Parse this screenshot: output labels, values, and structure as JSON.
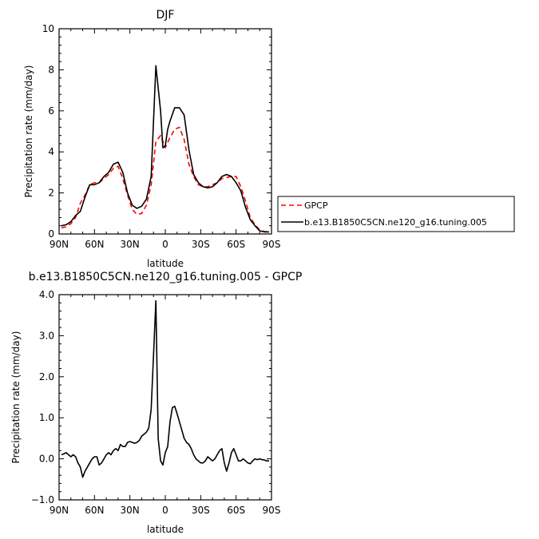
{
  "chart_data": [
    {
      "type": "line",
      "title": "DJF",
      "xlabel": "latitude",
      "ylabel": "Precipitation rate (mm/day)",
      "xlim": [
        90,
        -90
      ],
      "ylim": [
        0,
        10
      ],
      "xticks": [
        90,
        60,
        30,
        0,
        -30,
        -60,
        -90
      ],
      "xticklabels": [
        "90N",
        "60N",
        "30N",
        "0",
        "30S",
        "60S",
        "90S"
      ],
      "yticks": [
        0,
        2,
        4,
        6,
        8,
        10
      ],
      "yticklabels": [
        "0",
        "2",
        "4",
        "6",
        "8",
        "10"
      ],
      "legend_position": "right",
      "series": [
        {
          "name": "GPCP",
          "color": "#ff0000",
          "dash": "dashed",
          "x": [
            88,
            84,
            80,
            76,
            72,
            68,
            64,
            60,
            56,
            52,
            48,
            44,
            40,
            36,
            32,
            28,
            24,
            20,
            16,
            12,
            8,
            4,
            0,
            -4,
            -8,
            -12,
            -16,
            -20,
            -24,
            -28,
            -32,
            -36,
            -40,
            -44,
            -48,
            -52,
            -56,
            -60,
            -64,
            -68,
            -72,
            -76,
            -80,
            -84,
            -88
          ],
          "y": [
            0.3,
            0.35,
            0.5,
            0.8,
            1.5,
            1.9,
            2.4,
            2.5,
            2.5,
            2.7,
            2.9,
            3.2,
            3.3,
            2.7,
            1.9,
            1.2,
            0.95,
            1.0,
            1.4,
            2.4,
            4.5,
            4.8,
            4.2,
            4.7,
            5.1,
            5.2,
            4.6,
            3.4,
            2.8,
            2.4,
            2.3,
            2.3,
            2.4,
            2.5,
            2.7,
            2.75,
            2.8,
            2.8,
            2.3,
            1.6,
            0.8,
            0.45,
            0.2,
            0.12,
            0.1
          ]
        },
        {
          "name": "b.e13.B1850C5CN.ne120_g16.tuning.005",
          "color": "#000000",
          "dash": "solid",
          "x": [
            88,
            84,
            80,
            76,
            72,
            68,
            64,
            60,
            56,
            52,
            48,
            44,
            40,
            36,
            32,
            28,
            24,
            20,
            16,
            12,
            8,
            4,
            2,
            0,
            -2,
            -4,
            -8,
            -12,
            -16,
            -20,
            -24,
            -28,
            -32,
            -36,
            -40,
            -44,
            -48,
            -52,
            -56,
            -60,
            -64,
            -68,
            -72,
            -76,
            -80,
            -84,
            -88
          ],
          "y": [
            0.4,
            0.45,
            0.6,
            0.9,
            1.1,
            1.8,
            2.4,
            2.4,
            2.5,
            2.8,
            3.0,
            3.4,
            3.5,
            3.0,
            2.0,
            1.4,
            1.25,
            1.35,
            1.7,
            2.8,
            8.2,
            6.0,
            4.2,
            4.3,
            5.1,
            5.5,
            6.15,
            6.15,
            5.8,
            4.1,
            2.9,
            2.5,
            2.3,
            2.25,
            2.3,
            2.5,
            2.8,
            2.9,
            2.8,
            2.5,
            2.1,
            1.3,
            0.7,
            0.4,
            0.15,
            0.1,
            0.1
          ]
        }
      ]
    },
    {
      "type": "line",
      "title": "b.e13.B1850C5CN.ne120_g16.tuning.005 - GPCP",
      "xlabel": "latitude",
      "ylabel": "Precipitation rate (mm/day)",
      "xlim": [
        90,
        -90
      ],
      "ylim": [
        -1,
        4
      ],
      "xticks": [
        90,
        60,
        30,
        0,
        -30,
        -60,
        -90
      ],
      "xticklabels": [
        "90N",
        "60N",
        "30N",
        "0",
        "30S",
        "60S",
        "90S"
      ],
      "yticks": [
        -1,
        0,
        1,
        2,
        3,
        4
      ],
      "yticklabels": [
        "−1.0",
        "0.0",
        "1.0",
        "2.0",
        "3.0",
        "4.0"
      ],
      "series": [
        {
          "color": "#000000",
          "dash": "solid",
          "x": [
            88,
            86,
            84,
            82,
            80,
            78,
            76,
            74,
            72,
            70,
            68,
            66,
            64,
            62,
            60,
            58,
            56,
            54,
            52,
            50,
            48,
            46,
            44,
            42,
            40,
            38,
            36,
            34,
            32,
            30,
            28,
            26,
            24,
            22,
            20,
            18,
            16,
            14,
            12,
            10,
            8,
            6,
            4,
            2,
            0,
            -2,
            -4,
            -6,
            -8,
            -10,
            -12,
            -14,
            -16,
            -18,
            -20,
            -22,
            -24,
            -26,
            -28,
            -30,
            -32,
            -34,
            -36,
            -38,
            -40,
            -42,
            -44,
            -46,
            -48,
            -50,
            -52,
            -54,
            -56,
            -58,
            -60,
            -62,
            -64,
            -66,
            -68,
            -70,
            -72,
            -74,
            -76,
            -78,
            -80,
            -82,
            -84,
            -86,
            -88
          ],
          "y": [
            0.1,
            0.12,
            0.15,
            0.1,
            0.05,
            0.1,
            0.05,
            -0.1,
            -0.2,
            -0.45,
            -0.3,
            -0.2,
            -0.1,
            0.0,
            0.05,
            0.05,
            -0.15,
            -0.1,
            0.0,
            0.1,
            0.15,
            0.1,
            0.2,
            0.25,
            0.2,
            0.35,
            0.3,
            0.3,
            0.4,
            0.42,
            0.4,
            0.38,
            0.4,
            0.45,
            0.55,
            0.6,
            0.65,
            0.75,
            1.2,
            2.5,
            3.85,
            0.5,
            -0.05,
            -0.15,
            0.15,
            0.3,
            0.9,
            1.25,
            1.28,
            1.1,
            0.9,
            0.7,
            0.5,
            0.4,
            0.35,
            0.25,
            0.1,
            0.0,
            -0.05,
            -0.1,
            -0.1,
            -0.05,
            0.05,
            0.0,
            -0.05,
            0.0,
            0.1,
            0.2,
            0.25,
            -0.1,
            -0.3,
            -0.1,
            0.15,
            0.25,
            0.1,
            -0.05,
            -0.05,
            0.0,
            -0.05,
            -0.1,
            -0.12,
            -0.05,
            0.0,
            -0.02,
            0.0,
            -0.02,
            -0.03,
            -0.05,
            -0.05
          ]
        }
      ]
    }
  ]
}
